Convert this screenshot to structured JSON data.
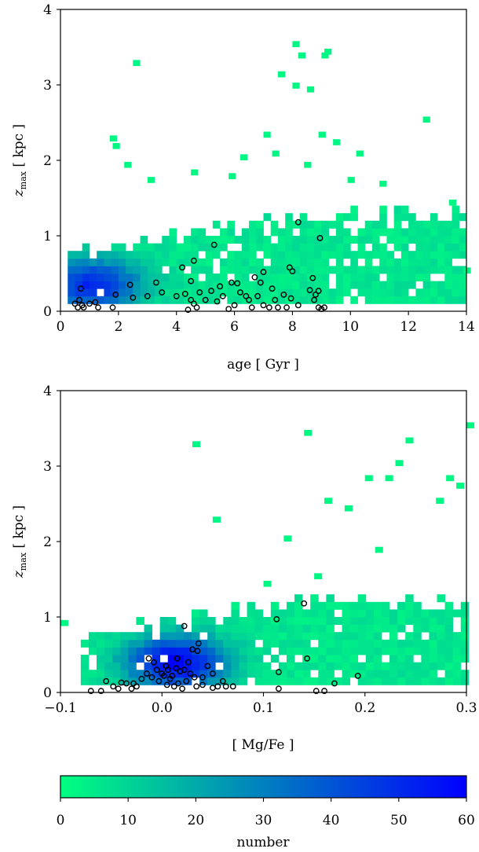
{
  "chart_data": [
    {
      "type": "heatmap",
      "xlabel": "age [ Gyr ]",
      "ylabel": "z_max [ kpc ]",
      "xlim": [
        0,
        14
      ],
      "ylim": [
        0,
        4
      ],
      "xticks": [
        "0",
        "2",
        "4",
        "6",
        "8",
        "10",
        "12",
        "14"
      ],
      "yticks": [
        "0",
        "1",
        "2",
        "3",
        "4"
      ],
      "density_bins": {
        "x_range": [
          0.25,
          14
        ],
        "y_range": [
          0.1,
          1.4
        ],
        "bin_x": 0.25,
        "bin_y": 0.1,
        "peak": [
          1,
          0.3
        ],
        "peak_count": 45
      },
      "outlier_bins": [
        [
          2.5,
          3.25
        ],
        [
          8.0,
          3.5
        ],
        [
          8.2,
          3.35
        ],
        [
          9.0,
          3.35
        ],
        [
          9.1,
          3.4
        ],
        [
          7.5,
          3.1
        ],
        [
          8.5,
          2.9
        ],
        [
          8.0,
          2.95
        ],
        [
          12.5,
          2.5
        ],
        [
          1.7,
          2.25
        ],
        [
          1.8,
          2.15
        ],
        [
          7.0,
          2.3
        ],
        [
          8.9,
          2.3
        ],
        [
          9.4,
          2.2
        ],
        [
          6.2,
          2.0
        ],
        [
          7.3,
          2.05
        ],
        [
          10.2,
          2.05
        ],
        [
          2.2,
          1.9
        ],
        [
          4.5,
          1.8
        ],
        [
          3.0,
          1.7
        ],
        [
          5.8,
          1.75
        ],
        [
          8.4,
          1.9
        ],
        [
          9.9,
          1.7
        ],
        [
          11.0,
          1.65
        ],
        [
          13.4,
          1.4
        ],
        [
          13.9,
          0.5
        ]
      ],
      "points": [
        [
          0.5,
          0.1
        ],
        [
          0.6,
          0.05
        ],
        [
          0.65,
          0.15
        ],
        [
          0.7,
          0.3
        ],
        [
          0.75,
          0.08
        ],
        [
          0.8,
          0.05
        ],
        [
          1.0,
          0.1
        ],
        [
          1.2,
          0.12
        ],
        [
          1.3,
          0.05
        ],
        [
          1.8,
          0.05
        ],
        [
          1.9,
          0.22
        ],
        [
          2.5,
          0.18
        ],
        [
          2.4,
          0.35
        ],
        [
          3.0,
          0.2
        ],
        [
          3.3,
          0.38
        ],
        [
          3.5,
          0.25
        ],
        [
          4.2,
          0.58
        ],
        [
          4.0,
          0.2
        ],
        [
          4.3,
          0.23
        ],
        [
          4.4,
          0.02
        ],
        [
          4.5,
          0.15
        ],
        [
          4.5,
          0.4
        ],
        [
          4.6,
          0.1
        ],
        [
          4.7,
          0.05
        ],
        [
          4.6,
          0.67
        ],
        [
          4.8,
          0.25
        ],
        [
          5.0,
          0.15
        ],
        [
          5.2,
          0.27
        ],
        [
          5.3,
          0.88
        ],
        [
          5.4,
          0.13
        ],
        [
          5.5,
          0.33
        ],
        [
          5.6,
          0.2
        ],
        [
          5.8,
          0.03
        ],
        [
          5.9,
          0.38
        ],
        [
          6.0,
          0.08
        ],
        [
          6.2,
          0.25
        ],
        [
          6.1,
          0.37
        ],
        [
          6.4,
          0.2
        ],
        [
          6.5,
          0.15
        ],
        [
          6.6,
          0.05
        ],
        [
          6.7,
          0.45
        ],
        [
          6.8,
          0.2
        ],
        [
          6.9,
          0.38
        ],
        [
          7.0,
          0.52
        ],
        [
          7.0,
          0.08
        ],
        [
          7.2,
          0.05
        ],
        [
          7.3,
          0.3
        ],
        [
          7.4,
          0.15
        ],
        [
          7.5,
          0.05
        ],
        [
          7.7,
          0.22
        ],
        [
          7.8,
          0.05
        ],
        [
          7.9,
          0.58
        ],
        [
          7.95,
          0.17
        ],
        [
          8.0,
          0.53
        ],
        [
          8.2,
          0.08
        ],
        [
          8.2,
          1.18
        ],
        [
          8.6,
          0.28
        ],
        [
          8.7,
          0.44
        ],
        [
          8.75,
          0.15
        ],
        [
          8.8,
          0.22
        ],
        [
          8.9,
          0.05
        ],
        [
          8.9,
          0.27
        ],
        [
          8.95,
          0.97
        ],
        [
          9.0,
          0.03
        ],
        [
          9.1,
          0.05
        ]
      ]
    },
    {
      "type": "heatmap",
      "xlabel": "[ Mg/Fe ]",
      "ylabel": "z_max [ kpc ]",
      "xlim": [
        -0.1,
        0.3
      ],
      "ylim": [
        0,
        4
      ],
      "xticks": [
        "−0.1",
        "0.0",
        "0.1",
        "0.2",
        "0.3"
      ],
      "yticks": [
        "0",
        "1",
        "2",
        "3",
        "4"
      ],
      "density_bins": {
        "x_range": [
          -0.08,
          0.3
        ],
        "y_range": [
          0.1,
          1.4
        ],
        "bin_x": 0.0078,
        "bin_y": 0.1,
        "peak": [
          0.01,
          0.35
        ],
        "peak_count": 55
      },
      "outlier_bins": [
        [
          -0.1,
          0.88
        ],
        [
          0.03,
          3.25
        ],
        [
          0.14,
          3.4
        ],
        [
          0.24,
          3.3
        ],
        [
          0.3,
          3.5
        ],
        [
          0.2,
          2.8
        ],
        [
          0.22,
          2.8
        ],
        [
          0.28,
          2.8
        ],
        [
          0.29,
          2.7
        ],
        [
          0.23,
          3.0
        ],
        [
          0.05,
          2.25
        ],
        [
          0.16,
          2.5
        ],
        [
          0.18,
          2.4
        ],
        [
          0.12,
          2.0
        ],
        [
          0.21,
          1.85
        ],
        [
          0.27,
          2.5
        ],
        [
          0.15,
          1.5
        ],
        [
          0.1,
          1.4
        ]
      ],
      "points": [
        [
          -0.07,
          0.02
        ],
        [
          -0.06,
          0.02
        ],
        [
          -0.055,
          0.15
        ],
        [
          -0.048,
          0.08
        ],
        [
          -0.043,
          0.05
        ],
        [
          -0.04,
          0.13
        ],
        [
          -0.035,
          0.12
        ],
        [
          -0.03,
          0.05
        ],
        [
          -0.028,
          0.12
        ],
        [
          -0.025,
          0.08
        ],
        [
          -0.02,
          0.18
        ],
        [
          -0.015,
          0.25
        ],
        [
          -0.013,
          0.45
        ],
        [
          -0.01,
          0.2
        ],
        [
          -0.008,
          0.4
        ],
        [
          -0.005,
          0.3
        ],
        [
          -0.003,
          0.15
        ],
        [
          0.0,
          0.25
        ],
        [
          0.002,
          0.22
        ],
        [
          0.004,
          0.35
        ],
        [
          0.005,
          0.1
        ],
        [
          0.006,
          0.3
        ],
        [
          0.008,
          0.18
        ],
        [
          0.01,
          0.22
        ],
        [
          0.012,
          0.08
        ],
        [
          0.014,
          0.32
        ],
        [
          0.015,
          0.45
        ],
        [
          0.016,
          0.12
        ],
        [
          0.018,
          0.28
        ],
        [
          0.02,
          0.05
        ],
        [
          0.022,
          0.3
        ],
        [
          0.022,
          0.88
        ],
        [
          0.024,
          0.15
        ],
        [
          0.026,
          0.4
        ],
        [
          0.028,
          0.25
        ],
        [
          0.03,
          0.57
        ],
        [
          0.032,
          0.2
        ],
        [
          0.034,
          0.08
        ],
        [
          0.035,
          0.55
        ],
        [
          0.036,
          0.65
        ],
        [
          0.04,
          0.2
        ],
        [
          0.04,
          0.1
        ],
        [
          0.045,
          0.35
        ],
        [
          0.05,
          0.25
        ],
        [
          0.05,
          0.06
        ],
        [
          0.055,
          0.08
        ],
        [
          0.06,
          0.15
        ],
        [
          0.063,
          0.08
        ],
        [
          0.07,
          0.08
        ],
        [
          0.113,
          0.97
        ],
        [
          0.115,
          0.27
        ],
        [
          0.115,
          0.05
        ],
        [
          0.14,
          1.18
        ],
        [
          0.143,
          0.45
        ],
        [
          0.152,
          0.02
        ],
        [
          0.16,
          0.02
        ],
        [
          0.17,
          0.12
        ],
        [
          0.193,
          0.22
        ]
      ]
    }
  ],
  "colorbar": {
    "label": "number",
    "min": 0,
    "max": 60,
    "ticks": [
      "0",
      "10",
      "20",
      "30",
      "40",
      "50",
      "60"
    ],
    "colors": [
      "#00ff80",
      "#0000ff"
    ]
  }
}
